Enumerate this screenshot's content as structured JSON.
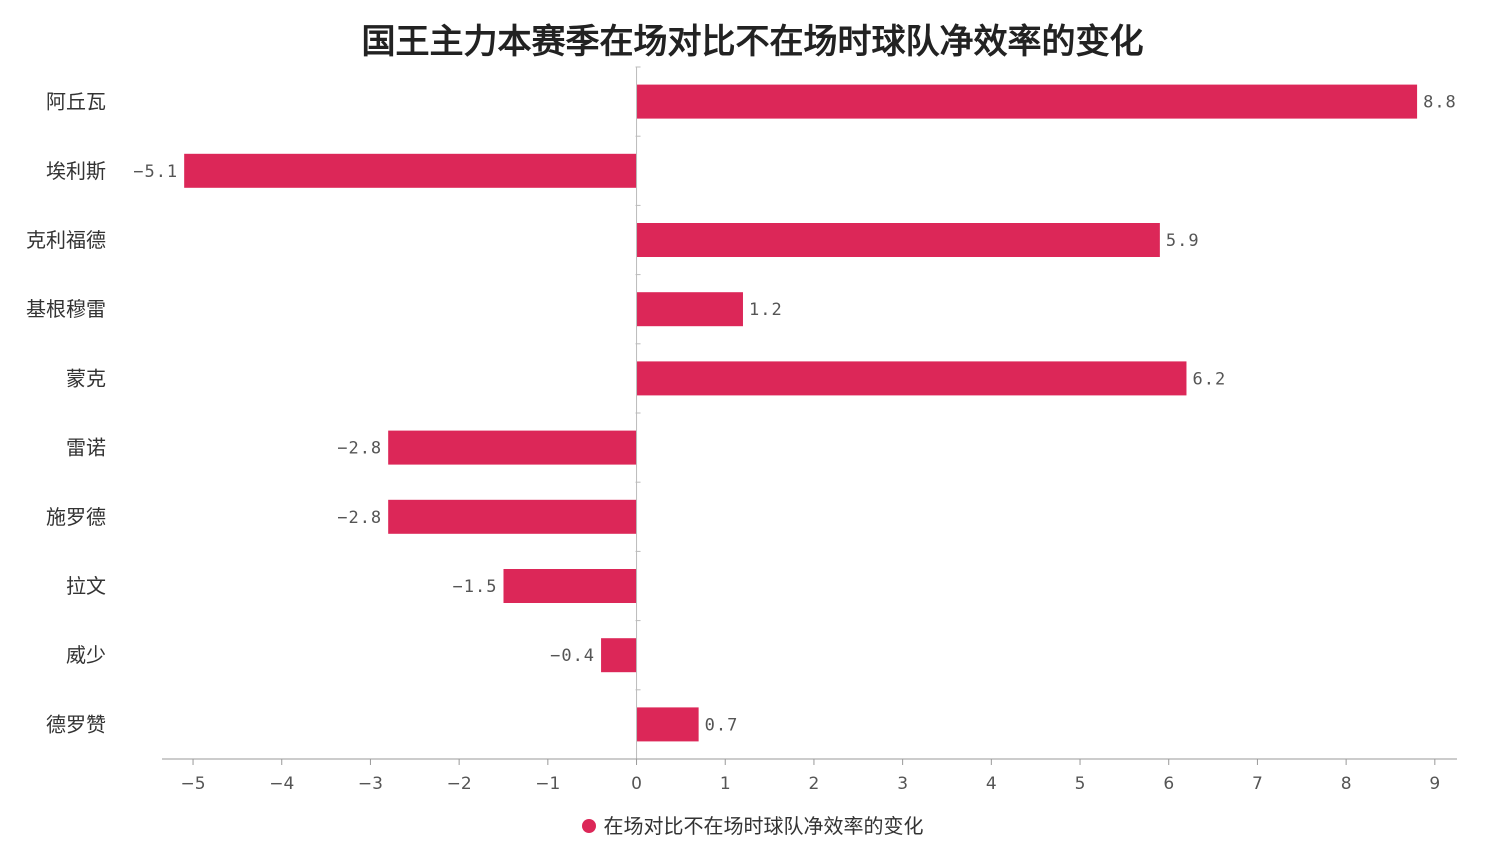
{
  "chart_data": {
    "type": "bar",
    "orientation": "horizontal",
    "title": "国王主力本赛季在场对比不在场时球队净效率的变化",
    "categories": [
      "阿丘瓦",
      "埃利斯",
      "克利福德",
      "基根穆雷",
      "蒙克",
      "雷诺",
      "施罗德",
      "拉文",
      "威少",
      "德罗赞"
    ],
    "series": [
      {
        "name": "在场对比不在场时球队净效率的变化",
        "values": [
          8.8,
          -5.1,
          5.9,
          1.2,
          6.2,
          -2.8,
          -2.8,
          -1.5,
          -0.4,
          0.7
        ]
      }
    ],
    "value_labels": [
      "8.8",
      "−5.1",
      "5.9",
      "1.2",
      "6.2",
      "−2.8",
      "−2.8",
      "−1.5",
      "−0.4",
      "0.7"
    ],
    "x_ticks": [
      -5,
      -4,
      -3,
      -2,
      -1,
      0,
      1,
      2,
      3,
      4,
      5,
      6,
      7,
      8,
      9
    ],
    "x_tick_labels": [
      "−5",
      "−4",
      "−3",
      "−2",
      "−1",
      "0",
      "1",
      "2",
      "3",
      "4",
      "5",
      "6",
      "7",
      "8",
      "9"
    ],
    "xlim": [
      -5.35,
      9.25
    ],
    "xlabel": "",
    "ylabel": "",
    "grid": false,
    "legend_position": "bottom-center",
    "bar_color": "#dc2758"
  }
}
